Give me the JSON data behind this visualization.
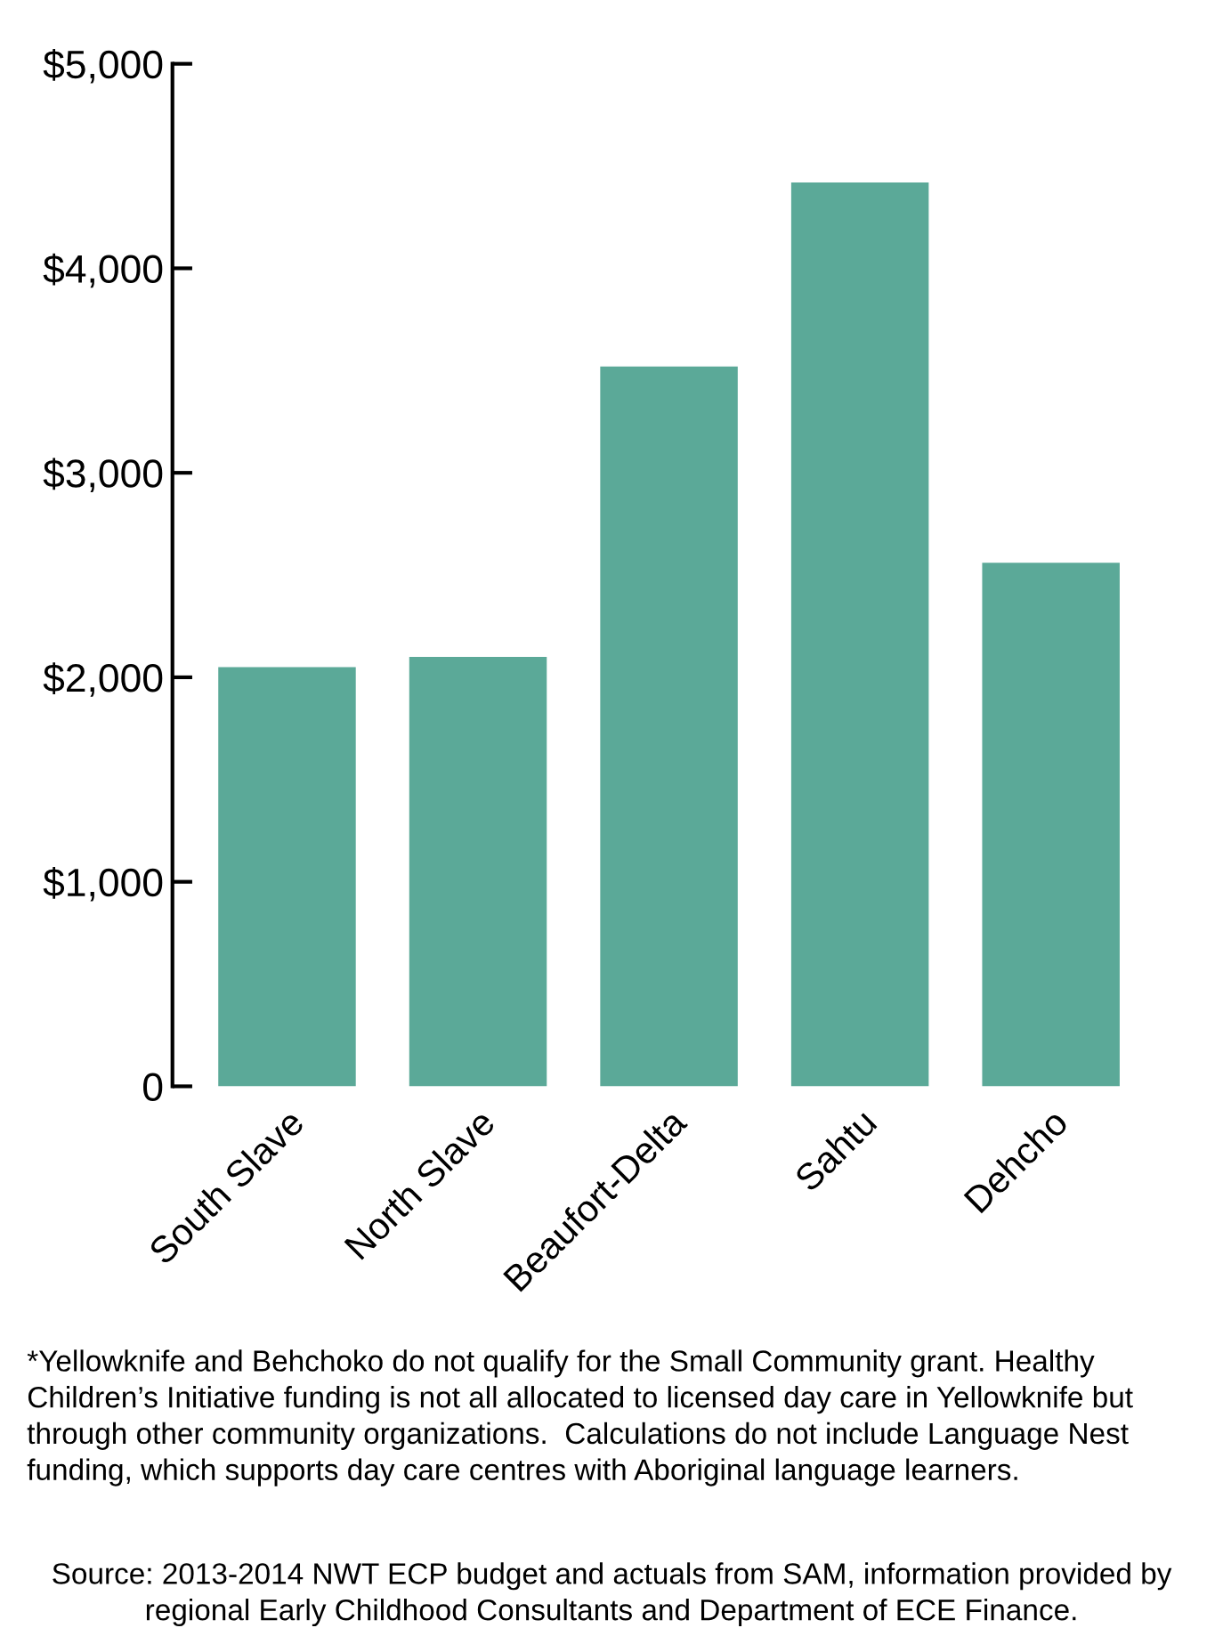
{
  "chart_data": {
    "type": "bar",
    "categories": [
      "South Slave",
      "North Slave",
      "Beaufort-Delta",
      "Sahtu",
      "Dehcho"
    ],
    "values": [
      2050,
      2100,
      3520,
      4420,
      2560
    ],
    "color": "#5ba998",
    "ylim": [
      0,
      5000
    ],
    "yticks": [
      {
        "value": 0,
        "label": "0"
      },
      {
        "value": 1000,
        "label": "$1,000"
      },
      {
        "value": 2000,
        "label": "$2,000"
      },
      {
        "value": 3000,
        "label": "$3,000"
      },
      {
        "value": 4000,
        "label": "$4,000"
      },
      {
        "value": 5000,
        "label": "$5,000"
      }
    ],
    "grid": false,
    "legend": false,
    "annotations": [
      "*Yellowknife and Behchoko do not qualify for the Small Community grant. Healthy Children’s Initiative funding is not all allocated to licensed day care in Yellowknife but through other community organizations.  Calculations do not include Language Nest funding, which supports day care centres with Aboriginal language learners.",
      "Source: 2013-2014 NWT ECP budget and actuals from SAM, information provided by regional Early Childhood Consultants and Department of ECE Finance."
    ]
  }
}
